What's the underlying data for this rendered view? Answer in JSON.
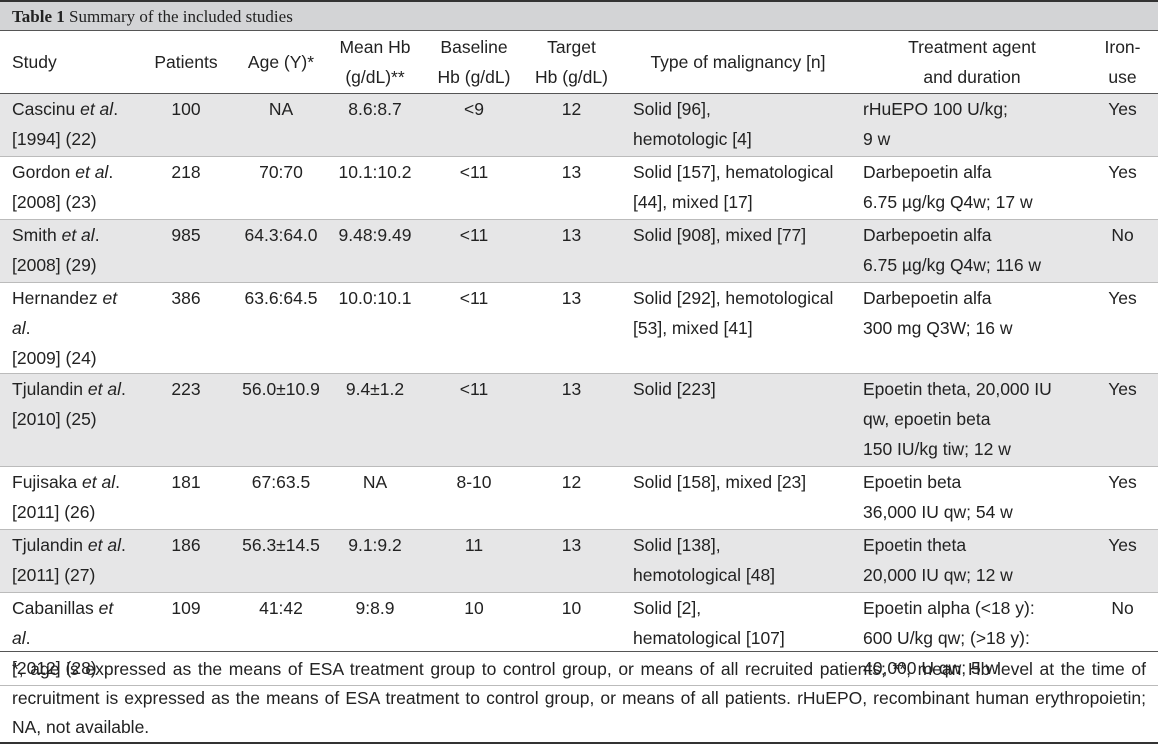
{
  "caption": {
    "label": "Table 1",
    "title": "Summary of the included studies"
  },
  "headers": {
    "study": "Study",
    "patients": "Patients",
    "age": "Age (Y)*",
    "mean_hb_1": "Mean Hb",
    "mean_hb_2": "(g/dL)**",
    "baseline_1": "Baseline",
    "baseline_2": "Hb (g/dL)",
    "target_1": "Target",
    "target_2": "Hb (g/dL)",
    "malignancy": "Type of malignancy [n]",
    "agent_1": "Treatment agent",
    "agent_2": "and duration",
    "iron_1": "Iron-",
    "iron_2": "use"
  },
  "rows": [
    {
      "author": "Cascinu",
      "etal": " et al",
      "tail": ".",
      "year": "[1994] (22)",
      "patients": "100",
      "age": "NA",
      "mean_hb": "8.6:8.7",
      "baseline": "<9",
      "target": "12",
      "malignancy_1": "Solid [96],",
      "malignancy_2": "hemotologic [4]",
      "agent_1": "rHuEPO 100 U/kg;",
      "agent_2": "9 w",
      "agent_3": "",
      "iron": "Yes"
    },
    {
      "author": "Gordon",
      "etal": " et al",
      "tail": ".",
      "year": "[2008] (23)",
      "patients": "218",
      "age": "70:70",
      "mean_hb": "10.1:10.2",
      "baseline": "<11",
      "target": "13",
      "malignancy_1": "Solid [157], hematological",
      "malignancy_2": "[44], mixed [17]",
      "agent_1": "Darbepoetin alfa",
      "agent_2": "6.75 µg/kg Q4w; 17 w",
      "agent_3": "",
      "iron": "Yes"
    },
    {
      "author": "Smith",
      "etal": " et al",
      "tail": ".",
      "year": "[2008] (29)",
      "patients": "985",
      "age": "64.3:64.0",
      "mean_hb": "9.48:9.49",
      "baseline": "<11",
      "target": "13",
      "malignancy_1": "Solid [908], mixed [77]",
      "malignancy_2": "",
      "agent_1": "Darbepoetin alfa",
      "agent_2": "6.75 µg/kg Q4w; 116 w",
      "agent_3": "",
      "iron": "No"
    },
    {
      "author": "Hernandez",
      "etal": " et al",
      "tail": ".",
      "year": "[2009] (24)",
      "patients": "386",
      "age": "63.6:64.5",
      "mean_hb": "10.0:10.1",
      "baseline": "<11",
      "target": "13",
      "malignancy_1": "Solid [292], hemotological",
      "malignancy_2": "[53], mixed [41]",
      "agent_1": "Darbepoetin alfa",
      "agent_2": "300 mg Q3W; 16 w",
      "agent_3": "",
      "iron": "Yes"
    },
    {
      "author": "Tjulandin",
      "etal": " et al",
      "tail": ".",
      "year": "[2010] (25)",
      "patients": "223",
      "age": "56.0±10.9",
      "mean_hb": "9.4±1.2",
      "baseline": "<11",
      "target": "13",
      "malignancy_1": "Solid [223]",
      "malignancy_2": "",
      "agent_1": "Epoetin theta, 20,000 IU",
      "agent_2": "qw, epoetin beta",
      "agent_3": "150 IU/kg tiw; 12 w",
      "iron": "Yes"
    },
    {
      "author": "Fujisaka",
      "etal": " et al",
      "tail": ".",
      "year": "[2011] (26)",
      "patients": "181",
      "age": "67:63.5",
      "mean_hb": "NA",
      "baseline": "8-10",
      "target": "12",
      "malignancy_1": "Solid [158], mixed [23]",
      "malignancy_2": "",
      "agent_1": "Epoetin beta",
      "agent_2": "36,000 IU qw; 54 w",
      "agent_3": "",
      "iron": "Yes"
    },
    {
      "author": "Tjulandin",
      "etal": " et al",
      "tail": ".",
      "year": "[2011] (27)",
      "patients": "186",
      "age": "56.3±14.5",
      "mean_hb": "9.1:9.2",
      "baseline": "11",
      "target": "13",
      "malignancy_1": "Solid [138],",
      "malignancy_2": "hemotological [48]",
      "agent_1": "Epoetin theta",
      "agent_2": "20,000 IU qw; 12 w",
      "agent_3": "",
      "iron": "Yes"
    },
    {
      "author": "Cabanillas",
      "etal": " et al",
      "tail": ".",
      "year": "[2012] (28)",
      "patients": "109",
      "age": "41:42",
      "mean_hb": "9:8.9",
      "baseline": "10",
      "target": "10",
      "malignancy_1": "Solid [2],",
      "malignancy_2": "hematological [107]",
      "agent_1": "Epoetin alpha (<18 y):",
      "agent_2": "600 U/kg qw; (>18 y):",
      "agent_3": "40,000 U qw; 5 w",
      "iron": "No"
    }
  ],
  "footnote": "*, age is expressed as the means of ESA treatment group to control group, or means of all recruited patients; **, mean Hb level at the time of recruitment is expressed as the means of ESA treatment to control group, or means of all patients. rHuEPO, recombinant human erythropoietin; NA, not available."
}
